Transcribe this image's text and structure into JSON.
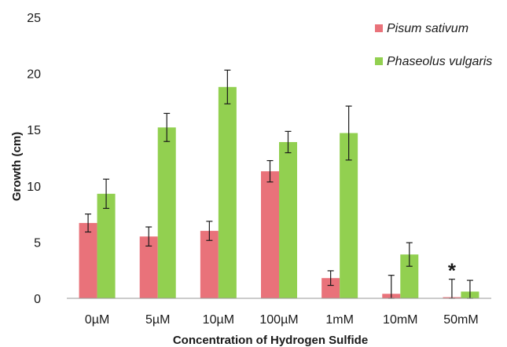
{
  "chart_data": {
    "type": "bar",
    "title": "",
    "xlabel": "Concentration of Hydrogen Sulfide",
    "ylabel": "Growth (cm)",
    "ylim": [
      0,
      25
    ],
    "yticks": [
      0,
      5,
      10,
      15,
      20,
      25
    ],
    "grid": false,
    "legend_position": "top-right",
    "categories": [
      "0µM",
      "5µM",
      "10µM",
      "100µM",
      "1mM",
      "10mM",
      "50mM"
    ],
    "series": [
      {
        "name": "Pisum sativum",
        "color": "#e9727a",
        "values": [
          6.7,
          5.5,
          6.0,
          11.3,
          1.8,
          0.4,
          0.1
        ],
        "errors": [
          0.8,
          0.85,
          0.85,
          0.95,
          0.65,
          1.65,
          1.6
        ]
      },
      {
        "name": "Phaseolus vulgaris",
        "color": "#92d050",
        "values": [
          9.3,
          15.2,
          18.8,
          13.9,
          14.7,
          3.9,
          0.6
        ],
        "errors": [
          1.3,
          1.25,
          1.5,
          0.95,
          2.4,
          1.05,
          1.0
        ]
      }
    ],
    "annotations": [
      {
        "text": "*",
        "category": "50mM"
      }
    ]
  }
}
